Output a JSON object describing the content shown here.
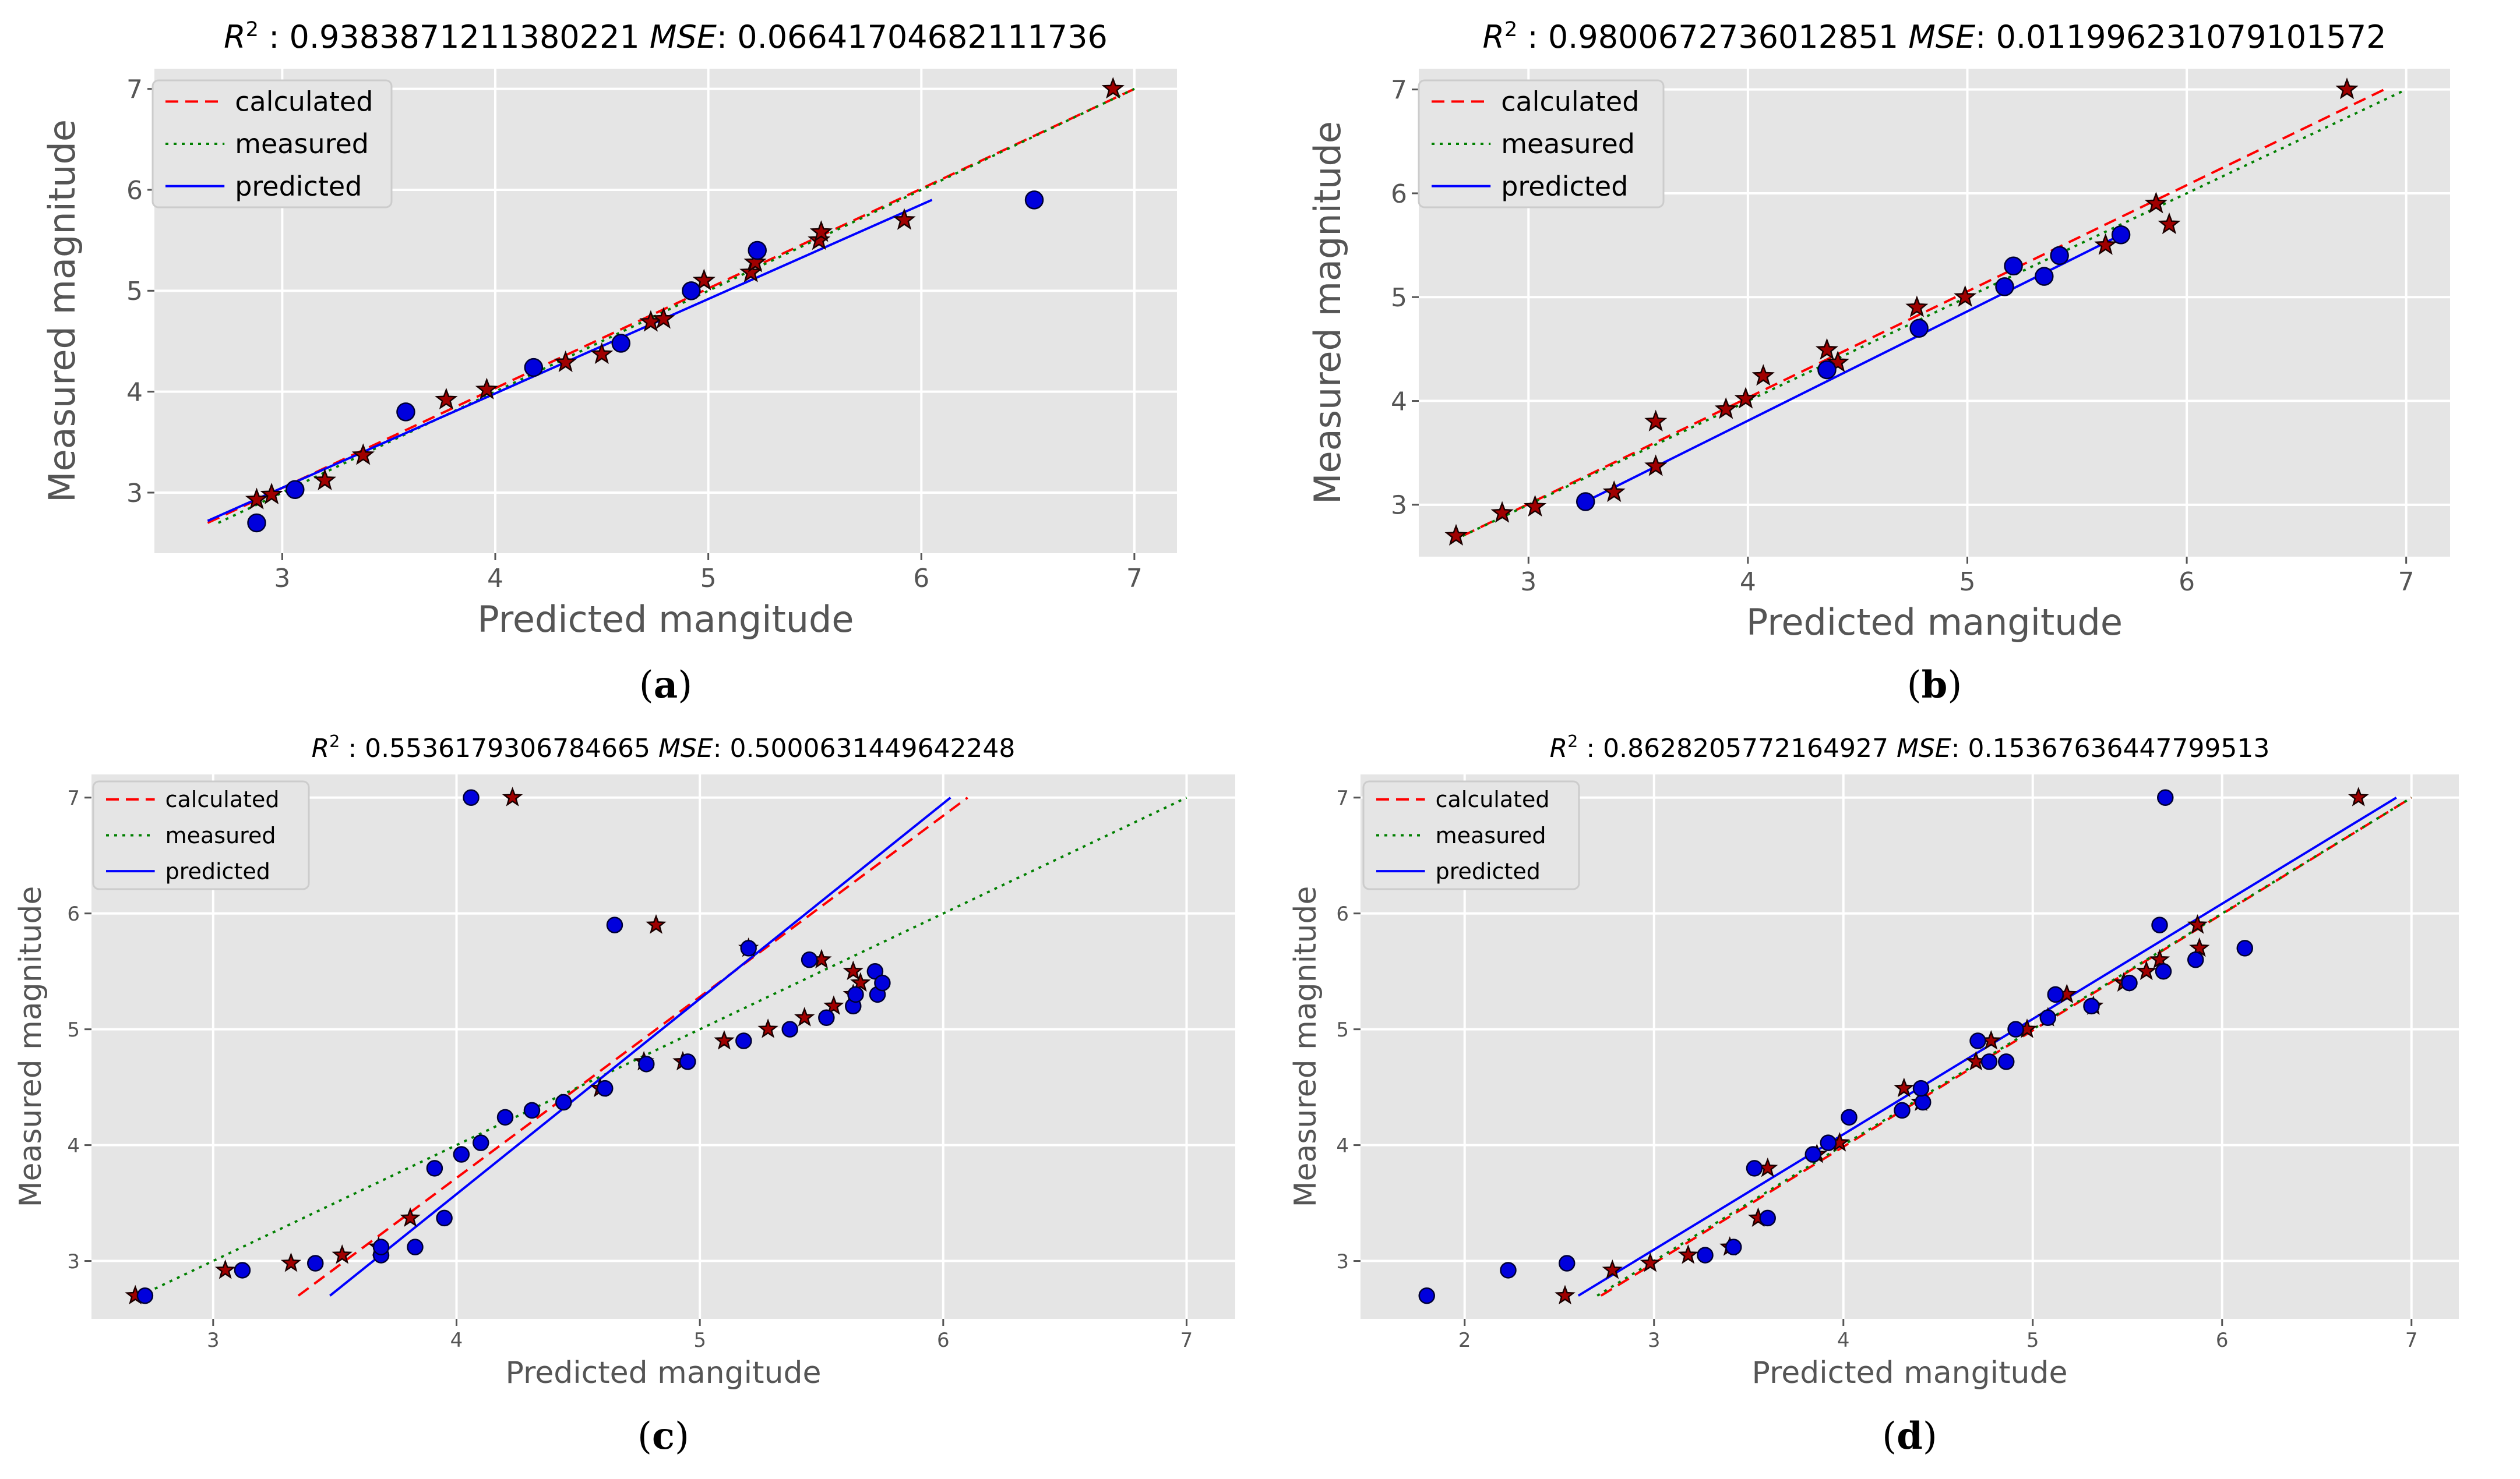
{
  "chart_data": [
    {
      "type": "scatter",
      "panel_label": "(a)",
      "title": {
        "r2_label": "R",
        "r2_sup": "2",
        "r2_value": " : 0.9383871211380221",
        "mse_label": "MSE",
        "mse_value": ": 0.06641704682111736"
      },
      "xlabel": "Predicted mangitude",
      "ylabel": "Measured magnitude",
      "xlim": [
        2.4,
        7.2
      ],
      "ylim": [
        2.4,
        7.2
      ],
      "xticks": [
        3,
        4,
        5,
        6,
        7
      ],
      "yticks": [
        3,
        4,
        5,
        6,
        7
      ],
      "grid": true,
      "legend_position": "top-left",
      "legend": [
        "calculated",
        "measured",
        "predicted"
      ],
      "colors": {
        "calculated": "#ff0000",
        "measured": "#008000",
        "predicted": "#0000ff",
        "star": "#a00000",
        "dot": "#0000dd"
      },
      "series": [
        {
          "name": "calculated",
          "style": "dashed",
          "x": [
            2.65,
            7.0
          ],
          "y": [
            2.7,
            7.0
          ]
        },
        {
          "name": "measured",
          "style": "dotted",
          "x": [
            2.7,
            7.0
          ],
          "y": [
            2.7,
            7.0
          ]
        },
        {
          "name": "predicted",
          "style": "solid",
          "x": [
            2.65,
            6.05
          ],
          "y": [
            2.72,
            5.9
          ]
        }
      ],
      "stars": {
        "x": [
          2.88,
          2.95,
          3.2,
          3.38,
          3.77,
          3.96,
          4.33,
          4.5,
          4.73,
          4.79,
          4.98,
          5.2,
          5.22,
          5.52,
          5.53,
          5.92,
          6.9
        ],
        "y": [
          2.93,
          2.98,
          3.12,
          3.37,
          3.92,
          4.02,
          4.29,
          4.37,
          4.69,
          4.72,
          5.1,
          5.18,
          5.28,
          5.5,
          5.58,
          5.7,
          7.0
        ]
      },
      "dots": {
        "x": [
          2.88,
          3.06,
          3.58,
          4.18,
          4.59,
          4.92,
          5.23,
          6.53
        ],
        "y": [
          2.7,
          3.03,
          3.8,
          4.24,
          4.48,
          5.0,
          5.4,
          5.9
        ]
      }
    },
    {
      "type": "scatter",
      "panel_label": "(b)",
      "title": {
        "r2_label": "R",
        "r2_sup": "2",
        "r2_value": " : 0.9800672736012851",
        "mse_label": "MSE",
        "mse_value": ": 0.011996231079101572"
      },
      "xlabel": "Predicted mangitude",
      "ylabel": "Measured magnitude",
      "xlim": [
        2.5,
        7.2
      ],
      "ylim": [
        2.5,
        7.2
      ],
      "xticks": [
        3,
        4,
        5,
        6,
        7
      ],
      "yticks": [
        3,
        4,
        5,
        6,
        7
      ],
      "grid": true,
      "legend_position": "top-left",
      "legend": [
        "calculated",
        "measured",
        "predicted"
      ],
      "colors": {
        "calculated": "#ff0000",
        "measured": "#008000",
        "predicted": "#0000ff",
        "star": "#a00000",
        "dot": "#0000dd"
      },
      "series": [
        {
          "name": "calculated",
          "style": "dashed",
          "x": [
            2.7,
            6.9
          ],
          "y": [
            2.7,
            7.0
          ]
        },
        {
          "name": "measured",
          "style": "dotted",
          "x": [
            2.7,
            7.0
          ],
          "y": [
            2.7,
            7.0
          ]
        },
        {
          "name": "predicted",
          "style": "solid",
          "x": [
            3.25,
            5.7
          ],
          "y": [
            3.02,
            5.6
          ]
        }
      ],
      "stars": {
        "x": [
          2.67,
          2.88,
          3.03,
          3.39,
          3.58,
          3.58,
          3.9,
          3.99,
          4.07,
          4.36,
          4.41,
          4.77,
          4.99,
          5.63,
          5.86,
          5.92,
          6.73
        ],
        "y": [
          2.7,
          2.92,
          2.98,
          3.12,
          3.37,
          3.8,
          3.92,
          4.02,
          4.24,
          4.49,
          4.37,
          4.9,
          5.0,
          5.5,
          5.9,
          5.7,
          7.0
        ]
      },
      "dots": {
        "x": [
          3.26,
          4.36,
          4.78,
          5.17,
          5.21,
          5.35,
          5.42,
          5.7
        ],
        "y": [
          3.03,
          4.3,
          4.7,
          5.1,
          5.3,
          5.2,
          5.4,
          5.6
        ]
      }
    },
    {
      "type": "scatter",
      "panel_label": "(c)",
      "title": {
        "r2_label": "R",
        "r2_sup": "2",
        "r2_value": " : 0.5536179306784665",
        "mse_label": "MSE",
        "mse_value": ": 0.5000631449642248"
      },
      "xlabel": "Predicted mangitude",
      "ylabel": "Measured magnitude",
      "xlim": [
        2.5,
        7.2
      ],
      "ylim": [
        2.5,
        7.2
      ],
      "xticks": [
        3,
        4,
        5,
        6,
        7
      ],
      "yticks": [
        3,
        4,
        5,
        6,
        7
      ],
      "grid": true,
      "legend_position": "top-left",
      "legend": [
        "calculated",
        "measured",
        "predicted"
      ],
      "colors": {
        "calculated": "#ff0000",
        "measured": "#008000",
        "predicted": "#0000ff",
        "star": "#a00000",
        "dot": "#0000dd"
      },
      "series": [
        {
          "name": "calculated",
          "style": "dashed",
          "x": [
            3.35,
            6.1
          ],
          "y": [
            2.7,
            7.0
          ]
        },
        {
          "name": "measured",
          "style": "dotted",
          "x": [
            2.7,
            7.0
          ],
          "y": [
            2.7,
            7.0
          ]
        },
        {
          "name": "predicted",
          "style": "solid",
          "x": [
            3.48,
            6.03
          ],
          "y": [
            2.7,
            7.0
          ]
        }
      ],
      "stars": {
        "x": [
          2.68,
          3.05,
          3.32,
          3.53,
          3.68,
          3.81,
          4.23,
          4.59,
          4.77,
          4.82,
          4.93,
          5.1,
          5.2,
          5.28,
          5.43,
          5.5,
          5.55,
          5.63,
          5.63,
          5.66
        ],
        "y": [
          2.7,
          2.92,
          2.98,
          3.05,
          3.12,
          3.37,
          7.0,
          4.49,
          4.72,
          5.9,
          4.72,
          4.9,
          5.7,
          5.0,
          5.1,
          5.6,
          5.2,
          5.5,
          5.3,
          5.4
        ]
      },
      "dots": {
        "x": [
          2.72,
          3.12,
          3.42,
          3.69,
          3.69,
          3.83,
          3.91,
          3.95,
          4.02,
          4.06,
          4.1,
          4.2,
          4.31,
          4.44,
          4.61,
          4.65,
          4.78,
          4.95,
          5.18,
          5.2,
          5.37,
          5.45,
          5.52,
          5.63,
          5.64,
          5.72,
          5.73,
          5.75
        ],
        "y": [
          2.7,
          2.92,
          2.98,
          3.05,
          3.12,
          3.12,
          3.8,
          3.37,
          3.92,
          7.0,
          4.02,
          4.24,
          4.3,
          4.37,
          4.49,
          5.9,
          4.7,
          4.72,
          4.9,
          5.7,
          5.0,
          5.6,
          5.1,
          5.2,
          5.3,
          5.5,
          5.3,
          5.4
        ]
      }
    },
    {
      "type": "scatter",
      "panel_label": "(d)",
      "title": {
        "r2_label": "R",
        "r2_sup": "2",
        "r2_value": " : 0.8628205772164927",
        "mse_label": "MSE",
        "mse_value": ": 0.15367636447799513"
      },
      "xlabel": "Predicted mangitude",
      "ylabel": "Measured magnitude",
      "xlim": [
        1.45,
        7.25
      ],
      "ylim": [
        2.5,
        7.2
      ],
      "xticks": [
        2,
        3,
        4,
        5,
        6,
        7
      ],
      "yticks": [
        3,
        4,
        5,
        6,
        7
      ],
      "grid": true,
      "legend_position": "top-left",
      "legend": [
        "calculated",
        "measured",
        "predicted"
      ],
      "colors": {
        "calculated": "#ff0000",
        "measured": "#008000",
        "predicted": "#0000ff",
        "star": "#a00000",
        "dot": "#0000dd"
      },
      "series": [
        {
          "name": "calculated",
          "style": "dashed",
          "x": [
            2.72,
            7.0
          ],
          "y": [
            2.7,
            7.0
          ]
        },
        {
          "name": "measured",
          "style": "dotted",
          "x": [
            2.7,
            7.0
          ],
          "y": [
            2.7,
            7.0
          ]
        },
        {
          "name": "predicted",
          "style": "solid",
          "x": [
            2.6,
            6.92
          ],
          "y": [
            2.7,
            7.0
          ]
        }
      ],
      "stars": {
        "x": [
          2.53,
          2.78,
          2.98,
          3.18,
          3.4,
          3.55,
          3.6,
          3.86,
          3.98,
          4.32,
          4.41,
          4.7,
          4.78,
          4.97,
          5.08,
          5.18,
          5.32,
          5.48,
          5.6,
          5.67,
          5.87,
          5.88,
          6.72
        ],
        "y": [
          2.7,
          2.92,
          2.98,
          3.05,
          3.12,
          3.37,
          3.8,
          3.92,
          4.02,
          4.49,
          4.37,
          4.72,
          4.9,
          5.0,
          5.1,
          5.3,
          5.2,
          5.4,
          5.5,
          5.6,
          5.9,
          5.7,
          7.0
        ]
      },
      "dots": {
        "x": [
          1.8,
          2.23,
          2.54,
          3.27,
          3.42,
          3.53,
          3.6,
          3.84,
          3.92,
          4.03,
          4.31,
          4.42,
          4.41,
          4.71,
          4.77,
          4.86,
          4.91,
          5.08,
          5.12,
          5.31,
          5.51,
          5.67,
          5.69,
          5.7,
          5.86,
          6.12
        ],
        "y": [
          2.7,
          2.92,
          2.98,
          3.05,
          3.12,
          3.8,
          3.37,
          3.92,
          4.02,
          4.24,
          4.3,
          4.37,
          4.49,
          4.9,
          4.72,
          4.72,
          5.0,
          5.1,
          5.3,
          5.2,
          5.4,
          5.9,
          5.5,
          7.0,
          5.6,
          5.7
        ]
      }
    }
  ]
}
